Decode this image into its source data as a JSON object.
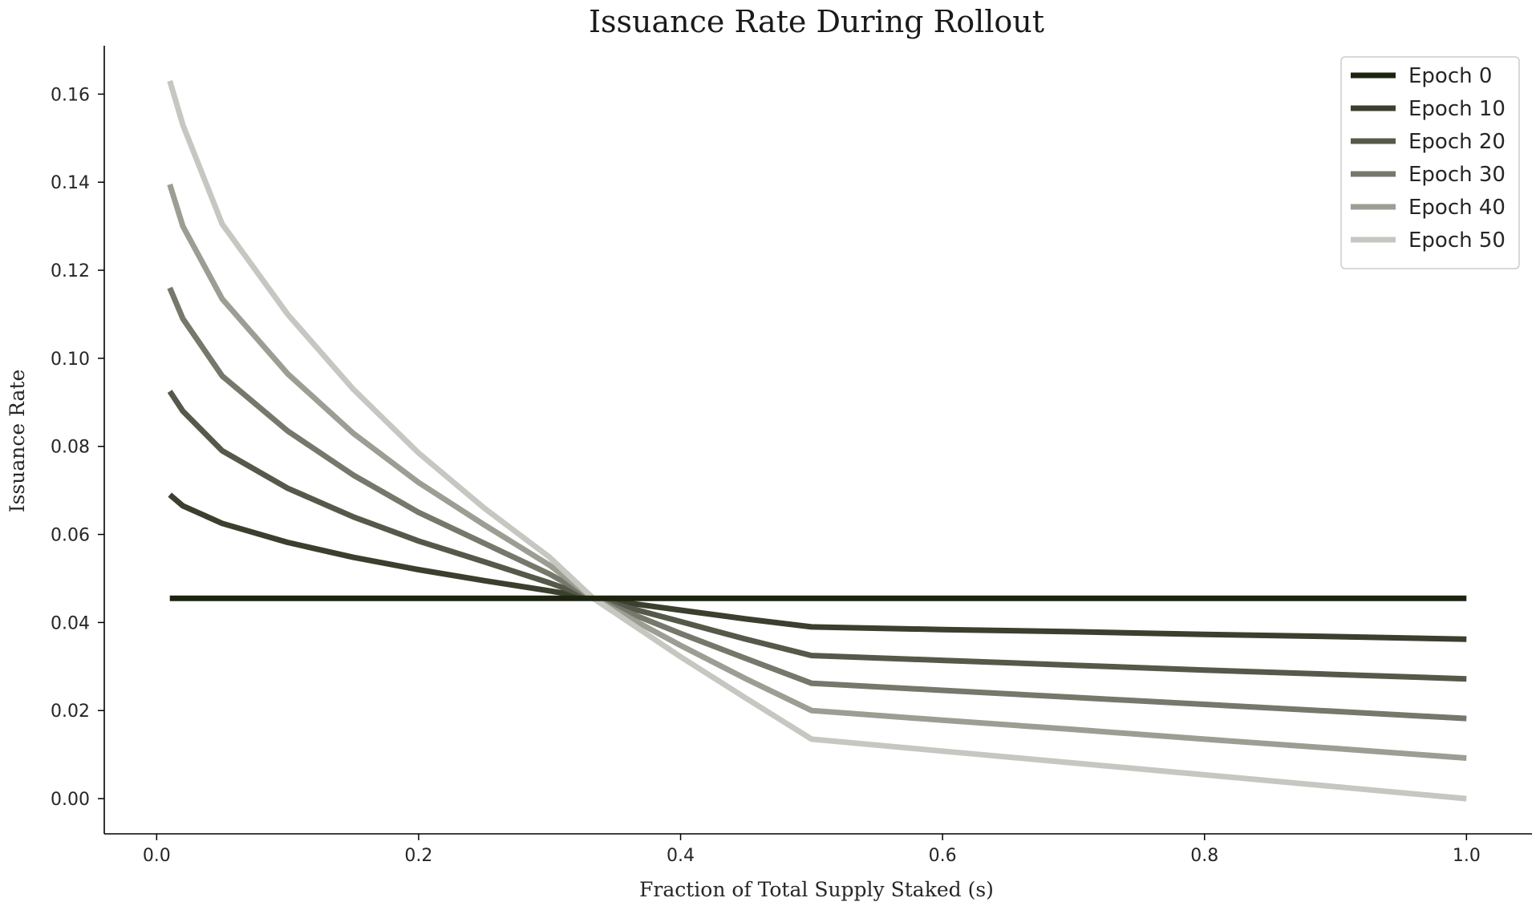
{
  "chart_data": {
    "type": "line",
    "title": "Issuance Rate During Rollout",
    "xlabel": "Fraction of Total Supply Staked (s)",
    "ylabel": "Issuance Rate",
    "xlim": [
      -0.04,
      1.05
    ],
    "ylim": [
      -0.008,
      0.171
    ],
    "xticks": [
      0.0,
      0.2,
      0.4,
      0.6,
      0.8,
      1.0
    ],
    "xtick_labels": [
      "0.0",
      "0.2",
      "0.4",
      "0.6",
      "0.8",
      "1.0"
    ],
    "yticks": [
      0.0,
      0.02,
      0.04,
      0.06,
      0.08,
      0.1,
      0.12,
      0.14,
      0.16
    ],
    "ytick_labels": [
      "0.00",
      "0.02",
      "0.04",
      "0.06",
      "0.08",
      "0.10",
      "0.12",
      "0.14",
      "0.16"
    ],
    "grid": false,
    "legend_position": "top-right",
    "x": [
      0.01,
      0.02,
      0.05,
      0.1,
      0.15,
      0.2,
      0.25,
      0.3,
      0.3333,
      0.4,
      0.45,
      0.5,
      0.6,
      0.7,
      0.8,
      0.9,
      1.0
    ],
    "series": [
      {
        "name": "Epoch 0",
        "color": "#1c2410",
        "values": [
          0.0455,
          0.0455,
          0.0455,
          0.0455,
          0.0455,
          0.0455,
          0.0455,
          0.0455,
          0.0455,
          0.0455,
          0.0455,
          0.0455,
          0.0455,
          0.0455,
          0.0455,
          0.0455,
          0.0455
        ]
      },
      {
        "name": "Epoch 10",
        "color": "#3b3f2e",
        "values": [
          0.069,
          0.0665,
          0.0625,
          0.0582,
          0.0548,
          0.052,
          0.0495,
          0.0472,
          0.0455,
          0.0428,
          0.0408,
          0.039,
          0.0384,
          0.0379,
          0.0373,
          0.0368,
          0.0362
        ]
      },
      {
        "name": "Epoch 20",
        "color": "#55594a",
        "values": [
          0.0925,
          0.088,
          0.079,
          0.0705,
          0.064,
          0.0585,
          0.0538,
          0.049,
          0.0455,
          0.0402,
          0.0362,
          0.0325,
          0.0314,
          0.0303,
          0.0292,
          0.0282,
          0.0272
        ]
      },
      {
        "name": "Epoch 30",
        "color": "#75786a",
        "values": [
          0.116,
          0.109,
          0.096,
          0.0835,
          0.0735,
          0.065,
          0.058,
          0.051,
          0.0455,
          0.0375,
          0.0318,
          0.0262,
          0.0246,
          0.023,
          0.0214,
          0.0198,
          0.0182
        ]
      },
      {
        "name": "Epoch 40",
        "color": "#9c9e94",
        "values": [
          0.1395,
          0.13,
          0.1135,
          0.0965,
          0.083,
          0.0718,
          0.0622,
          0.053,
          0.0455,
          0.0348,
          0.0272,
          0.02,
          0.0178,
          0.0157,
          0.0135,
          0.0114,
          0.0092
        ]
      },
      {
        "name": "Epoch 50",
        "color": "#c6c7c1",
        "values": [
          0.163,
          0.153,
          0.1305,
          0.11,
          0.093,
          0.0785,
          0.066,
          0.0548,
          0.0455,
          0.0322,
          0.0228,
          0.0135,
          0.0108,
          0.0081,
          0.0054,
          0.0027,
          0.0
        ]
      }
    ]
  }
}
